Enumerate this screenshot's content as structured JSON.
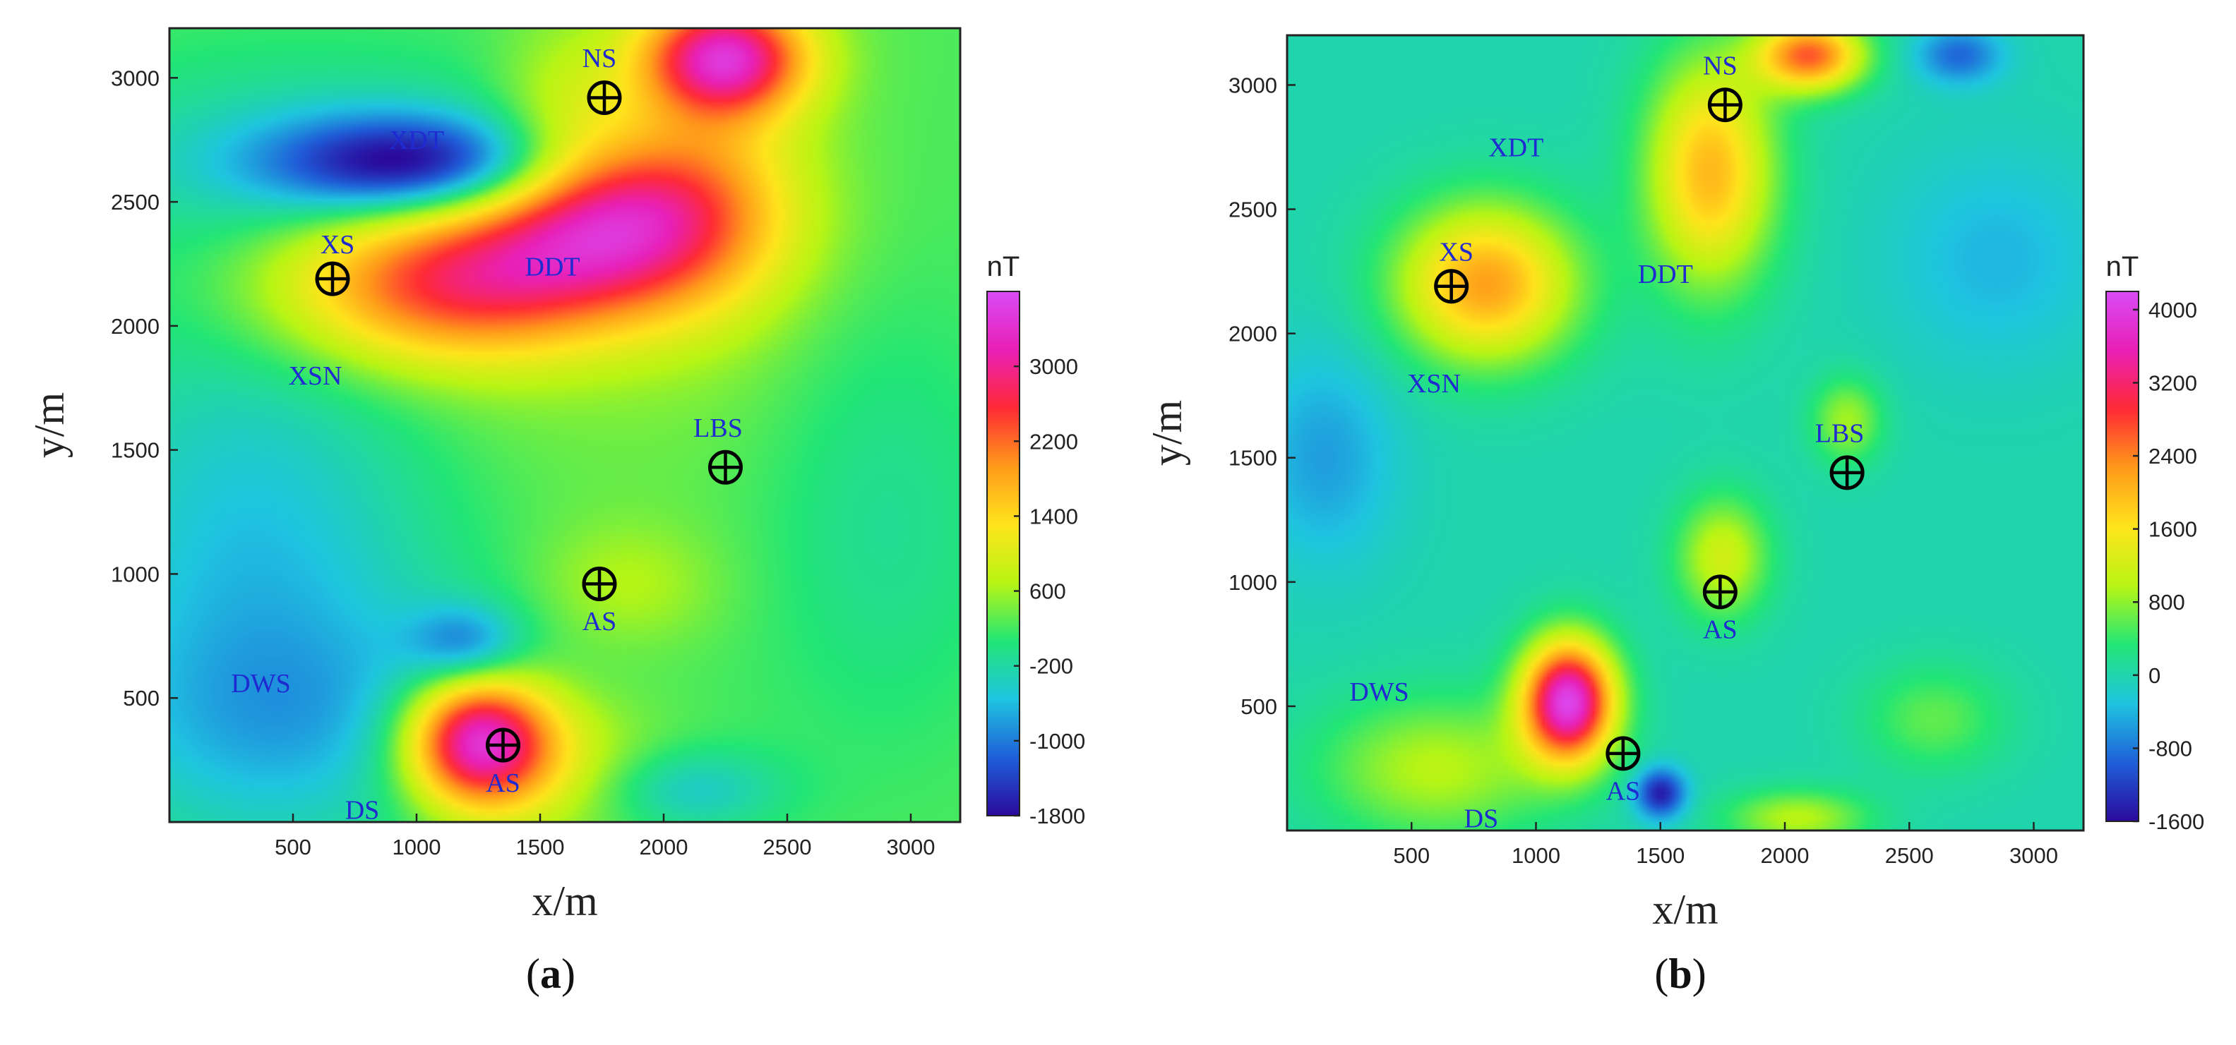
{
  "chart_data": [
    {
      "type": "heatmap",
      "panel_label": "(a)",
      "panel_letter": "a",
      "xlabel": "x/m",
      "ylabel": "y/m",
      "xlim": [
        0,
        3200
      ],
      "ylim": [
        0,
        3200
      ],
      "x_ticks": [
        500,
        1000,
        1500,
        2000,
        2500,
        3000
      ],
      "y_ticks": [
        500,
        1000,
        1500,
        2000,
        2500,
        3000
      ],
      "colorbar": {
        "unit": "nT",
        "range": [
          -1800,
          3800
        ],
        "ticks": [
          3000,
          2200,
          1400,
          600,
          -200,
          -1000,
          -1800
        ],
        "colors": [
          "#2a0a9e",
          "#1f5fd8",
          "#1fc4e0",
          "#22e676",
          "#b8f514",
          "#ffe41c",
          "#ff9a1a",
          "#ff2a35",
          "#e81fb6",
          "#d94cf5"
        ]
      },
      "background": 250,
      "anomalies": [
        {
          "x": 1850,
          "y": 2450,
          "sx": 380,
          "sy": 240,
          "amp": 2300
        },
        {
          "x": 1050,
          "y": 2150,
          "sx": 480,
          "sy": 230,
          "amp": 1600
        },
        {
          "x": 1400,
          "y": 2250,
          "sx": 500,
          "sy": 220,
          "amp": 1100
        },
        {
          "x": 2250,
          "y": 3080,
          "sx": 230,
          "sy": 160,
          "amp": 2800
        },
        {
          "x": 2200,
          "y": 2700,
          "sx": 300,
          "sy": 500,
          "amp": 650
        },
        {
          "x": 1250,
          "y": 330,
          "sx": 200,
          "sy": 180,
          "amp": 3000
        },
        {
          "x": 1450,
          "y": 250,
          "sx": 350,
          "sy": 220,
          "amp": 900
        },
        {
          "x": 1000,
          "y": 2650,
          "sx": 420,
          "sy": 140,
          "amp": -1900
        },
        {
          "x": 600,
          "y": 2700,
          "sx": 800,
          "sy": 280,
          "amp": -500
        },
        {
          "x": 1600,
          "y": 2900,
          "sx": 200,
          "sy": 250,
          "amp": 500
        },
        {
          "x": 1850,
          "y": 950,
          "sx": 260,
          "sy": 180,
          "amp": 450
        },
        {
          "x": 350,
          "y": 1000,
          "sx": 550,
          "sy": 800,
          "amp": -850
        },
        {
          "x": 1200,
          "y": 720,
          "sx": 160,
          "sy": 110,
          "amp": -950
        },
        {
          "x": 2100,
          "y": 130,
          "sx": 260,
          "sy": 120,
          "amp": -700
        },
        {
          "x": 700,
          "y": 400,
          "sx": 700,
          "sy": 300,
          "amp": -500
        },
        {
          "x": 2900,
          "y": 1200,
          "sx": 350,
          "sy": 600,
          "amp": -350
        },
        {
          "x": 1500,
          "y": 1700,
          "sx": 600,
          "sy": 400,
          "amp": 150
        }
      ],
      "sites": [
        {
          "label": "NS",
          "x": 1760,
          "y": 2920,
          "lx": 1740,
          "ly": 3080
        },
        {
          "label": "XS",
          "x": 660,
          "y": 2190,
          "lx": 680,
          "ly": 2330
        },
        {
          "label": "LBS",
          "x": 2250,
          "y": 1430,
          "lx": 2220,
          "ly": 1590
        },
        {
          "label": "AS",
          "x": 1740,
          "y": 960,
          "lx": 1740,
          "ly": 810
        },
        {
          "label": "AS",
          "x": 1350,
          "y": 310,
          "lx": 1350,
          "ly": 160
        }
      ],
      "region_labels": [
        {
          "label": "XDT",
          "x": 1000,
          "y": 2750
        },
        {
          "label": "DDT",
          "x": 1550,
          "y": 2240
        },
        {
          "label": "XSN",
          "x": 590,
          "y": 1800
        },
        {
          "label": "DWS",
          "x": 370,
          "y": 560
        },
        {
          "label": "DS",
          "x": 780,
          "y": 50
        }
      ]
    },
    {
      "type": "heatmap",
      "panel_label": "(b)",
      "panel_letter": "b",
      "xlabel": "x/m",
      "ylabel": "y/m",
      "xlim": [
        0,
        3200
      ],
      "ylim": [
        0,
        3200
      ],
      "x_ticks": [
        500,
        1000,
        1500,
        2000,
        2500,
        3000
      ],
      "y_ticks": [
        500,
        1000,
        1500,
        2000,
        2500,
        3000
      ],
      "colorbar": {
        "unit": "nT",
        "range": [
          -1600,
          4200
        ],
        "ticks": [
          4000,
          3200,
          2400,
          1600,
          800,
          0,
          -800,
          -1600
        ],
        "colors": [
          "#2a0a9e",
          "#1f5fd8",
          "#1fc4e0",
          "#22e676",
          "#b8f514",
          "#ffe41c",
          "#ff9a1a",
          "#ff2a35",
          "#e81fb6",
          "#d94cf5"
        ]
      },
      "background": 0,
      "anomalies": [
        {
          "x": 1130,
          "y": 520,
          "sx": 130,
          "sy": 170,
          "amp": 4000
        },
        {
          "x": 800,
          "y": 2200,
          "sx": 250,
          "sy": 220,
          "amp": 2200
        },
        {
          "x": 1700,
          "y": 2650,
          "sx": 180,
          "sy": 320,
          "amp": 2000
        },
        {
          "x": 2100,
          "y": 3120,
          "sx": 150,
          "sy": 100,
          "amp": 2600
        },
        {
          "x": 1750,
          "y": 1100,
          "sx": 130,
          "sy": 170,
          "amp": 1200
        },
        {
          "x": 2250,
          "y": 1650,
          "sx": 100,
          "sy": 120,
          "amp": 900
        },
        {
          "x": 600,
          "y": 250,
          "sx": 330,
          "sy": 200,
          "amp": 1000
        },
        {
          "x": 2050,
          "y": 50,
          "sx": 200,
          "sy": 80,
          "amp": 1000
        },
        {
          "x": 1500,
          "y": 150,
          "sx": 70,
          "sy": 70,
          "amp": -1500
        },
        {
          "x": 2700,
          "y": 3120,
          "sx": 120,
          "sy": 80,
          "amp": -900
        },
        {
          "x": 150,
          "y": 1500,
          "sx": 200,
          "sy": 300,
          "amp": -550
        },
        {
          "x": 2850,
          "y": 2300,
          "sx": 300,
          "sy": 300,
          "amp": -400
        },
        {
          "x": 2600,
          "y": 450,
          "sx": 200,
          "sy": 150,
          "amp": 600
        }
      ],
      "sites": [
        {
          "label": "NS",
          "x": 1760,
          "y": 2920,
          "lx": 1740,
          "ly": 3080
        },
        {
          "label": "XS",
          "x": 660,
          "y": 2190,
          "lx": 680,
          "ly": 2330
        },
        {
          "label": "LBS",
          "x": 2250,
          "y": 1440,
          "lx": 2220,
          "ly": 1600
        },
        {
          "label": "AS",
          "x": 1740,
          "y": 960,
          "lx": 1740,
          "ly": 810
        },
        {
          "label": "AS",
          "x": 1350,
          "y": 310,
          "lx": 1350,
          "ly": 160
        }
      ],
      "region_labels": [
        {
          "label": "XDT",
          "x": 920,
          "y": 2750
        },
        {
          "label": "DDT",
          "x": 1520,
          "y": 2240
        },
        {
          "label": "XSN",
          "x": 590,
          "y": 1800
        },
        {
          "label": "DWS",
          "x": 370,
          "y": 560
        },
        {
          "label": "DS",
          "x": 780,
          "y": 50
        }
      ]
    }
  ]
}
